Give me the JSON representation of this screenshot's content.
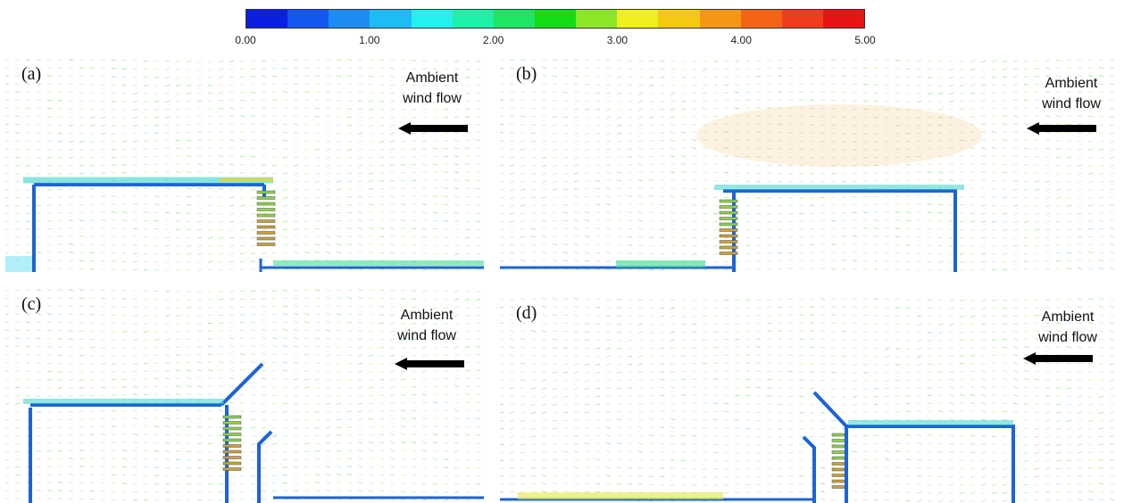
{
  "colorbar": {
    "colors": [
      "#0a1fe0",
      "#1456f0",
      "#1e8cf5",
      "#1ebcf5",
      "#25f0f0",
      "#1ef0a8",
      "#1ee664",
      "#14dc14",
      "#8ce628",
      "#f0f01e",
      "#f5c814",
      "#f59614",
      "#f56414",
      "#f03c1e",
      "#e61414"
    ],
    "ticks": [
      "0.00",
      "1.00",
      "2.00",
      "3.00",
      "4.00",
      "5.00"
    ],
    "tick_values": [
      0,
      1,
      2,
      3,
      4,
      5
    ]
  },
  "panels": [
    {
      "id": "a",
      "label": "(a)",
      "wind_line1": "Ambient",
      "wind_line2": "wind flow"
    },
    {
      "id": "b",
      "label": "(b)",
      "wind_line1": "Ambient",
      "wind_line2": "wind flow"
    },
    {
      "id": "c",
      "label": "(c)",
      "wind_line1": "Ambient",
      "wind_line2": "wind flow"
    },
    {
      "id": "d",
      "label": "(d)",
      "wind_line1": "Ambient",
      "wind_line2": "wind flow"
    }
  ]
}
